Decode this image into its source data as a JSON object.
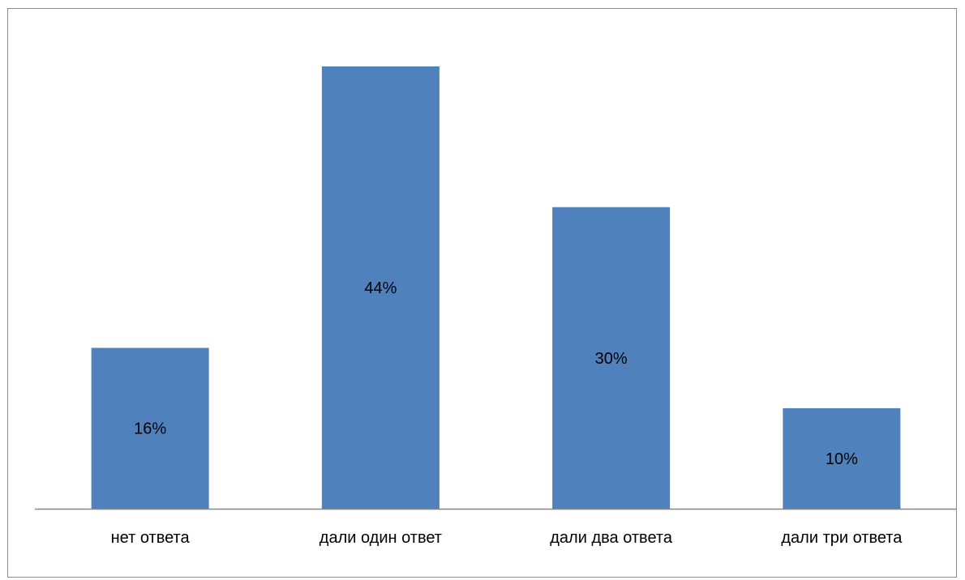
{
  "chart_data": {
    "type": "bar",
    "categories": [
      "нет ответа",
      "дали один ответ",
      "дали два ответа",
      "дали три ответа"
    ],
    "values": [
      16,
      44,
      30,
      10
    ],
    "value_labels": [
      "16%",
      "44%",
      "30%",
      "10%"
    ],
    "ylim": [
      0,
      44
    ],
    "grid": false,
    "legend": "none",
    "bar_color": "#4f81bd",
    "axis_color": "#868686"
  }
}
